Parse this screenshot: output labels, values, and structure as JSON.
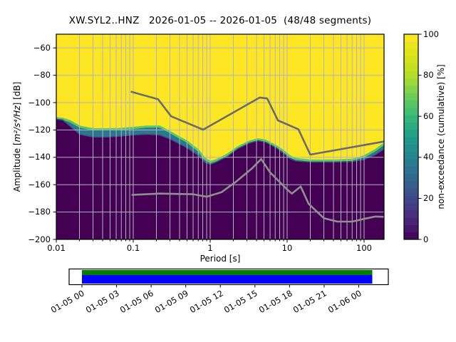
{
  "labels": {
    "title": "XW.SYL2..HNZ   2026-01-05 -- 2026-01-05  (48/48 segments)",
    "xlabel": "Period [s]",
    "ylabel_prefix": "Amplitude [",
    "ylabel_math": "m²/s⁴/Hz",
    "ylabel_suffix": "] [dB]",
    "colorbar_label": "non-exceedance (cumulative) [%]"
  },
  "chart_data": {
    "type": "heatmap",
    "title": "XW.SYL2..HNZ   2026-01-05 -- 2026-01-05  (48/48 segments)",
    "xlabel": "Period [s]",
    "ylabel": "Amplitude [m²/s⁴/Hz] [dB]",
    "xscale": "log",
    "xlim": [
      0.01,
      180
    ],
    "ylim": [
      -200,
      -50
    ],
    "grid": true,
    "x_ticks": {
      "values": [
        0.01,
        0.1,
        1,
        10,
        100
      ],
      "labels": [
        "0.01",
        "0.1",
        "1",
        "10",
        "100"
      ]
    },
    "y_ticks": {
      "values": [
        -60,
        -80,
        -100,
        -120,
        -140,
        -160,
        -180,
        -200
      ],
      "labels": [
        "−60",
        "−80",
        "−100",
        "−120",
        "−140",
        "−160",
        "−180",
        "−200"
      ]
    },
    "colorbar": {
      "label": "non-exceedance (cumulative) [%]",
      "cmap": "viridis",
      "range": [
        0,
        100
      ],
      "ticks": {
        "values": [
          0,
          20,
          40,
          60,
          80,
          100
        ],
        "labels": [
          "0",
          "20",
          "40",
          "60",
          "80",
          "100"
        ]
      },
      "steps": 28
    },
    "field_description": "non-exceedance is 100% (yellow) above the transition band and 0% (dark purple) below it",
    "transition_band": {
      "periods_s": [
        0.01,
        0.012,
        0.015,
        0.02,
        0.03,
        0.045,
        0.065,
        0.1,
        0.15,
        0.22,
        0.3,
        0.4,
        0.5,
        0.7,
        0.85,
        1.0,
        1.2,
        1.7,
        2.3,
        3.2,
        4.2,
        5.2,
        7.0,
        8.8,
        11.0,
        13.0,
        20.0,
        40.0,
        70.0,
        100.0,
        140.0,
        180.0
      ],
      "lower_db": [
        -112.5,
        -113.0,
        -117.5,
        -123.5,
        -125.5,
        -125.5,
        -125.0,
        -124.0,
        -123.5,
        -124.0,
        -127.0,
        -130.5,
        -133.5,
        -139.0,
        -144.0,
        -145.5,
        -143.8,
        -139.5,
        -134.0,
        -130.0,
        -128.2,
        -129.2,
        -133.0,
        -137.0,
        -141.5,
        -143.0,
        -143.8,
        -143.8,
        -143.5,
        -142.0,
        -138.5,
        -134.5
      ],
      "upper_db": [
        -111.3,
        -111.8,
        -113.5,
        -117.5,
        -119.5,
        -119.5,
        -119.3,
        -118.5,
        -117.5,
        -117.5,
        -121.5,
        -125.5,
        -128.5,
        -135.0,
        -141.0,
        -143.5,
        -142.2,
        -137.8,
        -132.6,
        -128.6,
        -126.8,
        -127.8,
        -131.4,
        -135.2,
        -139.5,
        -141.2,
        -142.4,
        -142.4,
        -141.8,
        -139.3,
        -134.8,
        -130.3
      ]
    },
    "noise_models": {
      "high": {
        "periods_s": [
          0.093,
          0.21,
          0.31,
          0.81,
          4.4,
          5.5,
          7.6,
          14.0,
          20.0,
          180.0
        ],
        "db": [
          -92.0,
          -97.5,
          -110.0,
          -119.8,
          -96.3,
          -97.0,
          -113.0,
          -119.5,
          -138.0,
          -128.5
        ]
      },
      "low": {
        "periods_s": [
          0.095,
          0.22,
          0.6,
          0.9,
          1.4,
          2.2,
          3.5,
          4.6,
          6.0,
          10.0,
          11.5,
          15.0,
          19.0,
          30.0,
          45.0,
          70.0,
          100.0,
          140.0,
          180.0
        ],
        "db": [
          -167.5,
          -166.5,
          -167.0,
          -168.8,
          -165.5,
          -157.5,
          -148.0,
          -141.3,
          -151.0,
          -163.5,
          -166.5,
          -161.3,
          -174.0,
          -184.5,
          -187.0,
          -187.0,
          -185.0,
          -183.3,
          -183.5
        ]
      }
    },
    "timeline": {
      "tick_labels": [
        "01-05 00",
        "01-05 03",
        "01-05 06",
        "01-05 09",
        "01-05 12",
        "01-05 15",
        "01-05 18",
        "01-05 21",
        "01-06 00"
      ],
      "coverage_top_color": "#008000",
      "coverage_bottom_color": "#0000ff"
    },
    "colors": {
      "max_nonexceedance": "#fde725",
      "min_nonexceedance": "#440154",
      "band_mid": "#2a788e",
      "band_upper_edge": "#5ec962",
      "band_lower_edge": "#3b528b",
      "noise_model_high_line": "#6b6b6b",
      "noise_model_low_line": "#909090",
      "grid": "#b3b3c0"
    }
  }
}
